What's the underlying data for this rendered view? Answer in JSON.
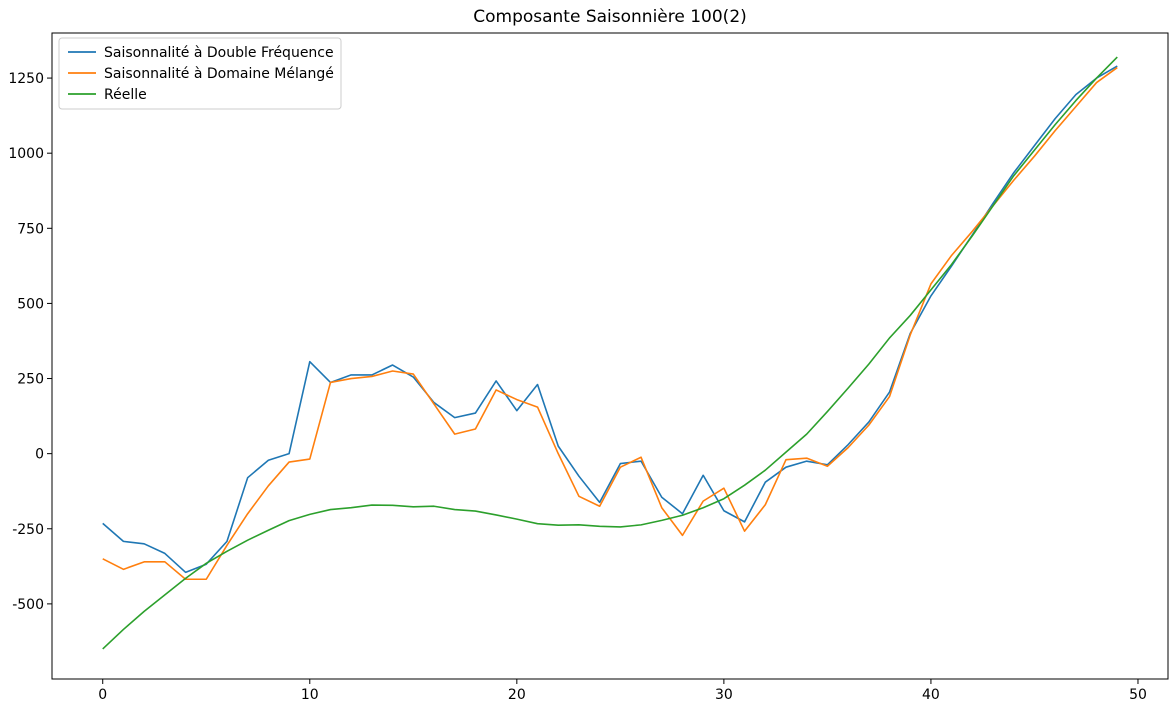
{
  "chart_data": {
    "type": "line",
    "title": "Composante Saisonnière 100(2)",
    "xlabel": "",
    "ylabel": "",
    "xlim": [
      -2.45,
      51.45
    ],
    "ylim": [
      -750,
      1400
    ],
    "xticks": [
      0,
      10,
      20,
      30,
      40,
      50
    ],
    "yticks": [
      -500,
      -250,
      0,
      250,
      500,
      750,
      1000,
      1250
    ],
    "grid": false,
    "legend_position": "top-left",
    "x": [
      0,
      1,
      2,
      3,
      4,
      5,
      6,
      7,
      8,
      9,
      10,
      11,
      12,
      13,
      14,
      15,
      16,
      17,
      18,
      19,
      20,
      21,
      22,
      23,
      24,
      25,
      26,
      27,
      28,
      29,
      30,
      31,
      32,
      33,
      34,
      35,
      36,
      37,
      38,
      39,
      40,
      41,
      42,
      43,
      44,
      45,
      46,
      47,
      48,
      49
    ],
    "series": [
      {
        "name": "Saisonnalité à Double Fréquence",
        "color": "#1f77b4",
        "values": [
          -232,
          -292,
          -300,
          -332,
          -395,
          -368,
          -292,
          -80,
          -22,
          0,
          306,
          237,
          262,
          262,
          295,
          255,
          170,
          120,
          135,
          242,
          143,
          230,
          25,
          -75,
          -162,
          -33,
          -25,
          -145,
          -200,
          -72,
          -190,
          -227,
          -95,
          -45,
          -25,
          -37,
          30,
          105,
          205,
          400,
          525,
          625,
          728,
          833,
          935,
          1025,
          1115,
          1195,
          1250,
          1290
        ]
      },
      {
        "name": "Saisonnalité à Domaine Mélangé",
        "color": "#ff7f0e",
        "values": [
          -350,
          -385,
          -360,
          -360,
          -418,
          -418,
          -305,
          -200,
          -107,
          -28,
          -18,
          237,
          250,
          257,
          275,
          265,
          165,
          65,
          82,
          212,
          180,
          155,
          0,
          -142,
          -175,
          -45,
          -12,
          -180,
          -272,
          -158,
          -115,
          -258,
          -170,
          -20,
          -15,
          -42,
          20,
          95,
          190,
          395,
          565,
          660,
          740,
          825,
          910,
          990,
          1075,
          1155,
          1235,
          1285
        ]
      },
      {
        "name": "Réelle",
        "color": "#2ca02c",
        "values": [
          -650,
          -585,
          -525,
          -470,
          -415,
          -365,
          -325,
          -288,
          -255,
          -223,
          -202,
          -186,
          -180,
          -171,
          -172,
          -177,
          -175,
          -186,
          -191,
          -204,
          -218,
          -233,
          -238,
          -237,
          -242,
          -244,
          -237,
          -222,
          -205,
          -180,
          -150,
          -105,
          -55,
          5,
          65,
          140,
          218,
          298,
          385,
          460,
          545,
          630,
          725,
          825,
          925,
          1010,
          1095,
          1175,
          1250,
          1320
        ]
      }
    ]
  }
}
